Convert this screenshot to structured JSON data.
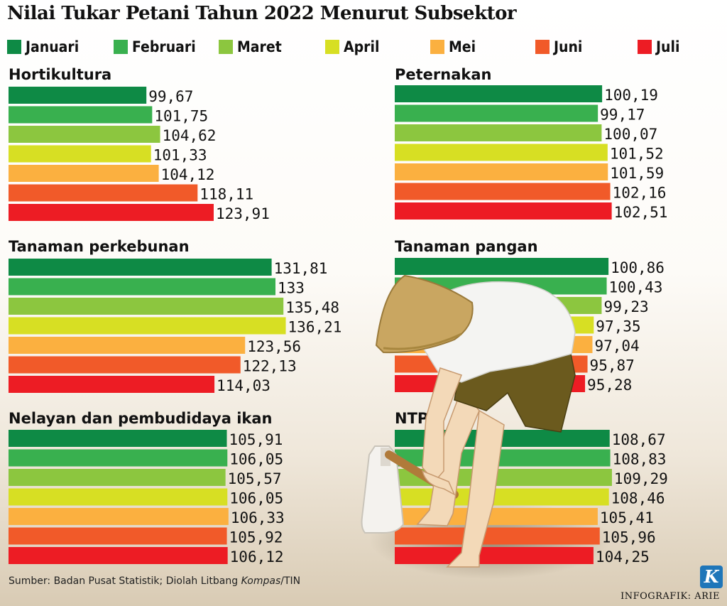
{
  "title": "Nilai Tukar Petani Tahun 2022 Menurut Subsektor",
  "legend": [
    {
      "label": "Januari",
      "color": "#0e8a45"
    },
    {
      "label": "Februari",
      "color": "#39b04f"
    },
    {
      "label": "Maret",
      "color": "#8cc63f"
    },
    {
      "label": "April",
      "color": "#d7df23"
    },
    {
      "label": "Mei",
      "color": "#fbb040"
    },
    {
      "label": "Juni",
      "color": "#f15a29"
    },
    {
      "label": "Juli",
      "color": "#ed1c24"
    }
  ],
  "chart_data": [
    {
      "type": "bar",
      "orientation": "horizontal",
      "title": "Hortikultura",
      "categories": [
        "Januari",
        "Februari",
        "Maret",
        "April",
        "Mei",
        "Juni",
        "Juli"
      ],
      "values": [
        99.67,
        101.75,
        104.62,
        101.33,
        104.12,
        118.11,
        123.91
      ],
      "labels": [
        "99,67",
        "101,75",
        "104,62",
        "101,33",
        "104,12",
        "118,11",
        "123,91"
      ]
    },
    {
      "type": "bar",
      "orientation": "horizontal",
      "title": "Peternakan",
      "categories": [
        "Januari",
        "Februari",
        "Maret",
        "April",
        "Mei",
        "Juni",
        "Juli"
      ],
      "values": [
        100.19,
        99.17,
        100.07,
        101.52,
        101.59,
        102.16,
        102.51
      ],
      "labels": [
        "100,19",
        "99,17",
        "100,07",
        "101,52",
        "101,59",
        "102,16",
        "102,51"
      ]
    },
    {
      "type": "bar",
      "orientation": "horizontal",
      "title": "Tanaman perkebunan",
      "categories": [
        "Januari",
        "Februari",
        "Maret",
        "April",
        "Mei",
        "Juni",
        "Juli"
      ],
      "values": [
        131.81,
        133,
        135.48,
        136.21,
        123.56,
        122.13,
        114.03
      ],
      "labels": [
        "131,81",
        "133",
        "135,48",
        "136,21",
        "123,56",
        "122,13",
        "114,03"
      ]
    },
    {
      "type": "bar",
      "orientation": "horizontal",
      "title": "Tanaman pangan",
      "categories": [
        "Januari",
        "Februari",
        "Maret",
        "April",
        "Mei",
        "Juni",
        "Juli"
      ],
      "values": [
        100.86,
        100.43,
        99.23,
        97.35,
        97.04,
        95.87,
        95.28
      ],
      "labels": [
        "100,86",
        "100,43",
        "99,23",
        "97,35",
        "97,04",
        "95,87",
        "95,28"
      ]
    },
    {
      "type": "bar",
      "orientation": "horizontal",
      "title": "Nelayan dan pembudidaya ikan",
      "categories": [
        "Januari",
        "Februari",
        "Maret",
        "April",
        "Mei",
        "Juni",
        "Juli"
      ],
      "values": [
        105.91,
        106.05,
        105.57,
        106.05,
        106.33,
        105.92,
        106.12
      ],
      "labels": [
        "105,91",
        "106,05",
        "105,57",
        "106,05",
        "106,33",
        "105,92",
        "106,12"
      ]
    },
    {
      "type": "bar",
      "orientation": "horizontal",
      "title": "NTP",
      "categories": [
        "Januari",
        "Februari",
        "Maret",
        "April",
        "Mei",
        "Juni",
        "Juli"
      ],
      "values": [
        108.67,
        108.83,
        109.29,
        108.46,
        105.41,
        105.96,
        104.25
      ],
      "labels": [
        "108,67",
        "108,83",
        "109,29",
        "108,46",
        "105,41",
        "105,96",
        "104,25"
      ]
    }
  ],
  "footer": {
    "source_prefix": "Sumber: Badan Pusat Statistik; Diolah Litbang ",
    "source_italic": "Kompas",
    "source_suffix": "/TIN",
    "credit": "INFOGRAFIK: ARIE",
    "logo_letter": "K"
  }
}
